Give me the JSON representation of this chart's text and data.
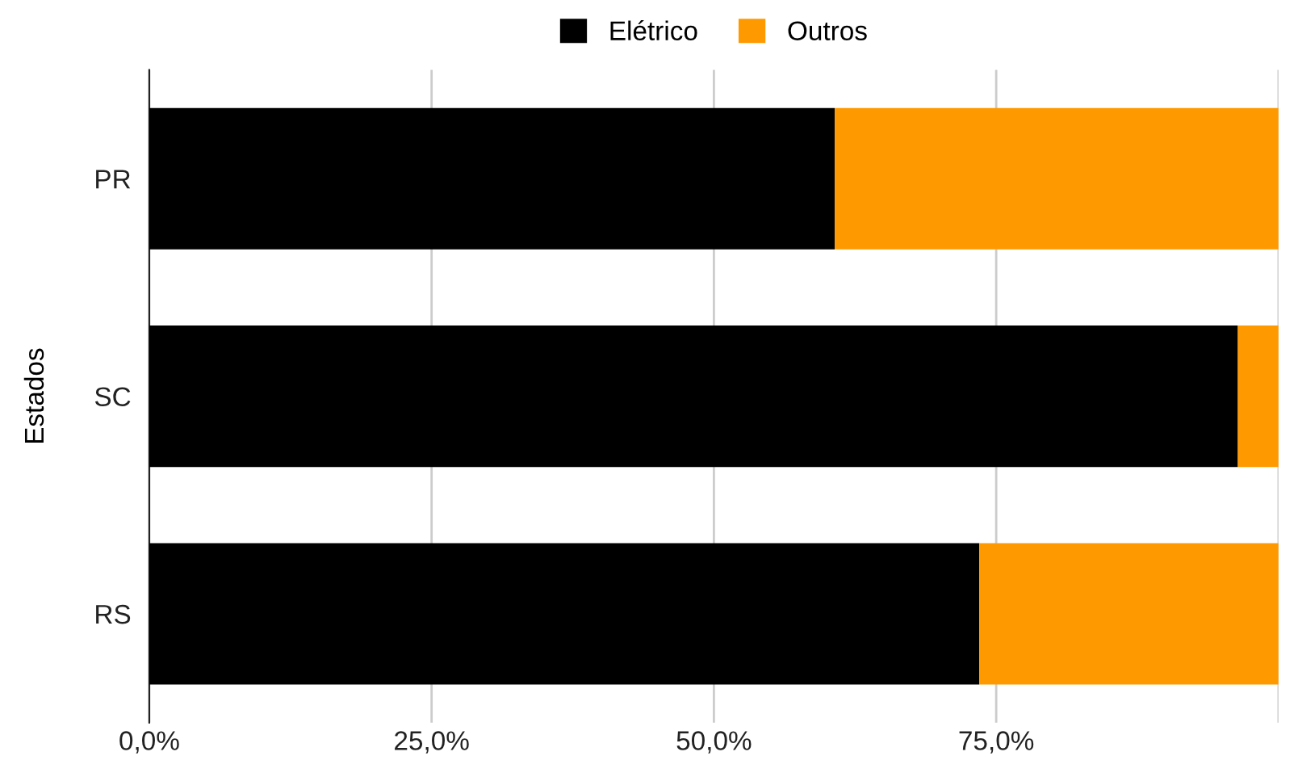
{
  "chart_data": {
    "type": "bar",
    "orientation": "horizontal",
    "stacked": true,
    "ylabel": "Estados",
    "categories": [
      "PR",
      "SC",
      "RS"
    ],
    "series": [
      {
        "name": "Elétrico",
        "color": "#000000",
        "values": [
          60.7,
          96.4,
          73.5
        ]
      },
      {
        "name": "Outros",
        "color": "#ff9900",
        "values": [
          39.3,
          3.6,
          26.5
        ]
      }
    ],
    "xlim": [
      0,
      100
    ],
    "xticks": [
      {
        "value": 0,
        "label": "0,0%"
      },
      {
        "value": 25,
        "label": "25,0%"
      },
      {
        "value": 50,
        "label": "50,0%"
      },
      {
        "value": 75,
        "label": "75,0%"
      },
      {
        "value": 100,
        "label": null
      }
    ],
    "grid": "x",
    "legend": "top"
  }
}
